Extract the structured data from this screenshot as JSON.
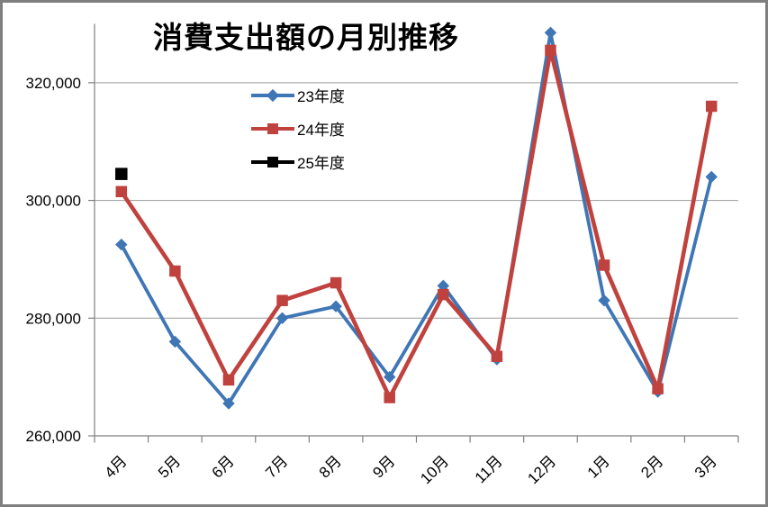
{
  "window": {
    "background": "#ffffff",
    "frame_border_color": "#7f7f7f"
  },
  "chart_data": {
    "type": "line",
    "title": "消費支出額の月別推移",
    "xlabel": "",
    "ylabel": "",
    "categories": [
      "4月",
      "5月",
      "6月",
      "7月",
      "8月",
      "9月",
      "10月",
      "11月",
      "12月",
      "1月",
      "2月",
      "3月"
    ],
    "series": [
      {
        "name": "23年度",
        "color": "#3F76B5",
        "marker": "diamond",
        "values": [
          292500,
          276000,
          265500,
          280000,
          282000,
          270000,
          285500,
          273000,
          328500,
          283000,
          267500,
          304000
        ]
      },
      {
        "name": "24年度",
        "color": "#C0423E",
        "marker": "square",
        "values": [
          301500,
          288000,
          269500,
          283000,
          286000,
          266500,
          284000,
          273500,
          325500,
          289000,
          268000,
          316000
        ]
      },
      {
        "name": "25年度",
        "color": "#000000",
        "marker": "square",
        "values": [
          304500,
          null,
          null,
          null,
          null,
          null,
          null,
          null,
          null,
          null,
          null,
          null
        ]
      }
    ],
    "ylim": [
      260000,
      330000
    ],
    "yticks": [
      {
        "value": 260000,
        "label": "260,000"
      },
      {
        "value": 280000,
        "label": "280,000"
      },
      {
        "value": 300000,
        "label": "300,000"
      },
      {
        "value": 320000,
        "label": "320,000"
      }
    ],
    "grid": true,
    "legend_position": "inside-top-center",
    "axis_color": "#808080",
    "grid_color": "#9b9b9b",
    "tick_label_color": "#000000"
  }
}
